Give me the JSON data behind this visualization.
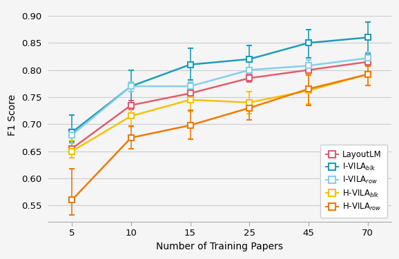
{
  "x": [
    5,
    10,
    15,
    25,
    45,
    70
  ],
  "x_positions": [
    0,
    1,
    2,
    3,
    4,
    5
  ],
  "series": {
    "LayoutLM": {
      "y": [
        0.655,
        0.735,
        0.757,
        0.785,
        0.8,
        0.815
      ],
      "yerr_lo": [
        0.01,
        0.008,
        0.012,
        0.007,
        0.008,
        0.008
      ],
      "yerr_hi": [
        0.01,
        0.008,
        0.012,
        0.007,
        0.008,
        0.008
      ],
      "color": "#e05c6e",
      "marker": "s"
    },
    "I-VILA_blk": {
      "y": [
        0.685,
        0.77,
        0.81,
        0.82,
        0.85,
        0.86
      ],
      "yerr_lo": [
        0.018,
        0.032,
        0.028,
        0.022,
        0.028,
        0.03
      ],
      "yerr_hi": [
        0.032,
        0.03,
        0.03,
        0.025,
        0.025,
        0.028
      ],
      "color": "#1a9db8",
      "marker": "s"
    },
    "I-VILA_row": {
      "y": [
        0.68,
        0.77,
        0.77,
        0.8,
        0.808,
        0.822
      ],
      "yerr_lo": [
        0.015,
        0.01,
        0.012,
        0.018,
        0.012,
        0.01
      ],
      "yerr_hi": [
        0.012,
        0.008,
        0.008,
        0.015,
        0.01,
        0.01
      ],
      "color": "#87ceeb",
      "marker": "s"
    },
    "H-VILA_blk": {
      "y": [
        0.65,
        0.715,
        0.745,
        0.74,
        0.762,
        0.792
      ],
      "yerr_lo": [
        0.012,
        0.02,
        0.022,
        0.02,
        0.025,
        0.02
      ],
      "yerr_hi": [
        0.02,
        0.018,
        0.025,
        0.02,
        0.03,
        0.02
      ],
      "color": "#f5c200",
      "marker": "s"
    },
    "H-VILA_row": {
      "y": [
        0.56,
        0.675,
        0.698,
        0.73,
        0.765,
        0.792
      ],
      "yerr_lo": [
        0.028,
        0.02,
        0.025,
        0.022,
        0.03,
        0.02
      ],
      "yerr_hi": [
        0.058,
        0.022,
        0.028,
        0.015,
        0.025,
        0.015
      ],
      "color": "#f07800",
      "marker": "s"
    }
  },
  "xlabel": "Number of Training Papers",
  "ylabel": "F1 Score",
  "ylim": [
    0.52,
    0.915
  ],
  "yticks": [
    0.55,
    0.6,
    0.65,
    0.7,
    0.75,
    0.8,
    0.85,
    0.9
  ],
  "legend_labels": [
    "LayoutLM",
    "I-VILA$_{blk}$",
    "I-VILA$_{row}$",
    "H-VILA$_{blk}$",
    "H-VILA$_{row}$"
  ],
  "background_color": "#f5f5f5",
  "grid_color": "#cccccc"
}
